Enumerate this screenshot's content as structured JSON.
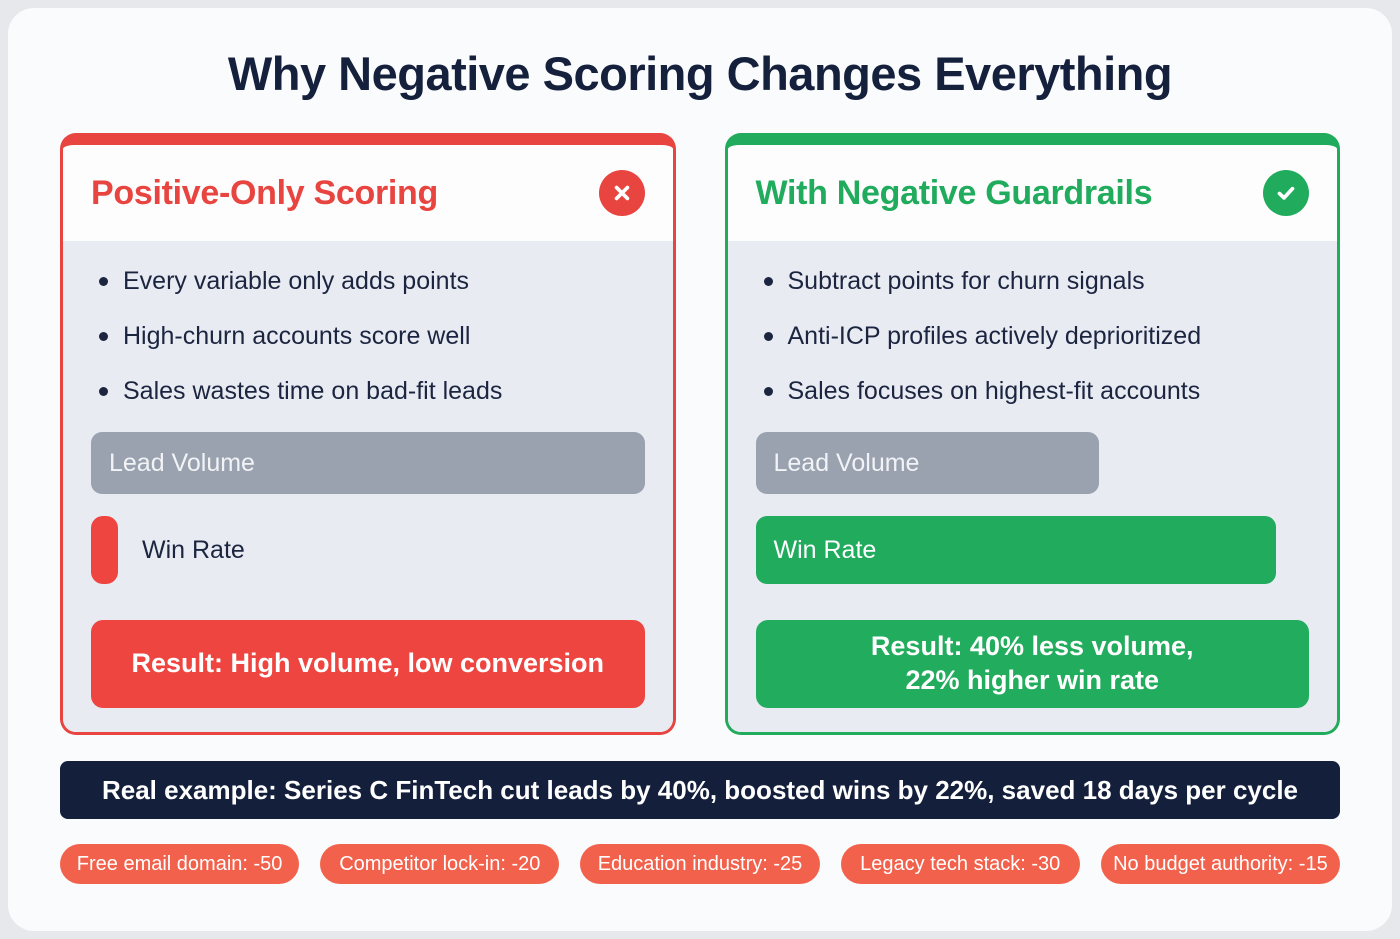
{
  "title": "Why Negative Scoring Changes Everything",
  "colors": {
    "red": "#e84440",
    "green": "#21ab5d",
    "navy_text": "#1c2540",
    "gray_bar": "#9aa2af",
    "banner_bg": "#141f3b",
    "pill_bg": "#f1614b",
    "card_body_bg": "#e9ebf2",
    "page_bg": "#fafbfd"
  },
  "cards": [
    {
      "title": "Positive-Only Scoring",
      "icon": "cross-icon",
      "bullets": [
        "Every variable only adds points",
        "High-churn accounts score well",
        "Sales wastes time on bad-fit leads"
      ],
      "bars": {
        "lead_volume": {
          "label": "Lead Volume",
          "width_pct": 100
        },
        "win_rate": {
          "label": "Win Rate",
          "width_pct": 5
        }
      },
      "result": "Result: High volume, low conversion"
    },
    {
      "title": "With Negative Guardrails",
      "icon": "check-icon",
      "bullets": [
        "Subtract points for churn signals",
        "Anti-ICP profiles actively deprioritized",
        "Sales focuses on highest-fit accounts"
      ],
      "bars": {
        "lead_volume": {
          "label": "Lead Volume",
          "width_pct": 62
        },
        "win_rate": {
          "label": "Win Rate",
          "width_pct": 94
        }
      },
      "result": "Result: 40% less volume,\n22% higher win rate"
    }
  ],
  "banner": "Real example: Series C FinTech cut leads by 40%, boosted wins by 22%, saved 18 days per cycle",
  "pills": [
    "Free email domain: -50",
    "Competitor lock-in: -20",
    "Education industry: -25",
    "Legacy tech stack: -30",
    "No budget authority: -15"
  ]
}
